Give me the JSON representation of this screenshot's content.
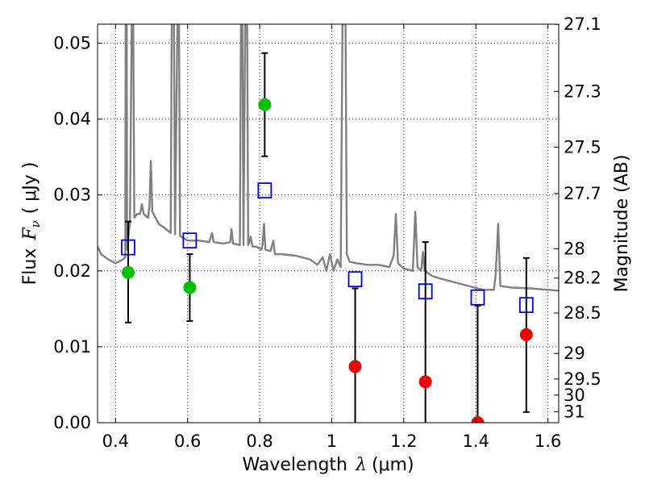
{
  "chart_data": {
    "type": "scatter",
    "xlabel_text": "Wavelength",
    "xlabel_symbol": "λ",
    "xlabel_unit": "(μm)",
    "ylabel_text": "Flux",
    "ylabel_symbol": "F",
    "ylabel_subscript": "ν",
    "ylabel_unit": "( μJy )",
    "y2label": "Magnitude (AB)",
    "xlim": [
      0.35,
      1.63
    ],
    "ylim": [
      0.0,
      0.0525
    ],
    "x_ticks": [
      0.4,
      0.6,
      0.8,
      1.0,
      1.2,
      1.4,
      1.6
    ],
    "x_tick_labels": [
      "0.4",
      "0.6",
      "0.8",
      "1",
      "1.2",
      "1.4",
      "1.6"
    ],
    "y_ticks": [
      0.0,
      0.01,
      0.02,
      0.03,
      0.04,
      0.05
    ],
    "y_tick_labels": [
      "0.00",
      "0.01",
      "0.02",
      "0.03",
      "0.04",
      "0.05"
    ],
    "y2_ticks": [
      27.1,
      27.3,
      27.5,
      27.7,
      28,
      28.2,
      28.5,
      29,
      29.5,
      30,
      31
    ],
    "y2_tick_labels": [
      "27.1",
      "27.3",
      "27.5",
      "27.7",
      "28",
      "28.2",
      "28.5",
      "29",
      "29.5",
      "30",
      "31"
    ],
    "grid": true,
    "colors": {
      "detection": "#00c000",
      "non_detection": "#ee0000",
      "model": "#0000dd",
      "spectrum": "#808080"
    },
    "observed_points": [
      {
        "x": 0.435,
        "y": 0.0198,
        "yerr_low": 0.0132,
        "yerr_high": 0.0265,
        "detected": true
      },
      {
        "x": 0.606,
        "y": 0.0178,
        "yerr_low": 0.0134,
        "yerr_high": 0.0222,
        "detected": true
      },
      {
        "x": 0.814,
        "y": 0.0419,
        "yerr_low": 0.0351,
        "yerr_high": 0.0487,
        "detected": true
      },
      {
        "x": 1.065,
        "y": 0.0074,
        "yerr_low": 0.0,
        "yerr_high": 0.0177,
        "detected": false
      },
      {
        "x": 1.26,
        "y": 0.0054,
        "yerr_low": 0.0,
        "yerr_high": 0.0238,
        "detected": false
      },
      {
        "x": 1.405,
        "y": 0.0,
        "yerr_low": 0.0,
        "yerr_high": 0.0154,
        "detected": false
      },
      {
        "x": 1.54,
        "y": 0.0116,
        "yerr_low": 0.0014,
        "yerr_high": 0.0217,
        "detected": false
      }
    ],
    "model_points": [
      {
        "x": 0.435,
        "y": 0.0231
      },
      {
        "x": 0.606,
        "y": 0.024
      },
      {
        "x": 0.814,
        "y": 0.0306
      },
      {
        "x": 1.065,
        "y": 0.0189
      },
      {
        "x": 1.26,
        "y": 0.0173
      },
      {
        "x": 1.405,
        "y": 0.0165
      },
      {
        "x": 1.54,
        "y": 0.0155
      }
    ],
    "spectrum": [
      [
        0.35,
        0.0232
      ],
      [
        0.36,
        0.0222
      ],
      [
        0.38,
        0.0215
      ],
      [
        0.4,
        0.021
      ],
      [
        0.42,
        0.0215
      ],
      [
        0.427,
        0.0218
      ],
      [
        0.428,
        0.054
      ],
      [
        0.431,
        0.054
      ],
      [
        0.432,
        0.0228
      ],
      [
        0.44,
        0.0265
      ],
      [
        0.445,
        0.054
      ],
      [
        0.449,
        0.054
      ],
      [
        0.452,
        0.027
      ],
      [
        0.46,
        0.0275
      ],
      [
        0.468,
        0.0275
      ],
      [
        0.473,
        0.0288
      ],
      [
        0.478,
        0.0275
      ],
      [
        0.49,
        0.027
      ],
      [
        0.494,
        0.0285
      ],
      [
        0.498,
        0.0345
      ],
      [
        0.502,
        0.0278
      ],
      [
        0.52,
        0.0262
      ],
      [
        0.54,
        0.0255
      ],
      [
        0.553,
        0.025
      ],
      [
        0.556,
        0.054
      ],
      [
        0.562,
        0.054
      ],
      [
        0.565,
        0.0248
      ],
      [
        0.572,
        0.054
      ],
      [
        0.576,
        0.054
      ],
      [
        0.579,
        0.0246
      ],
      [
        0.6,
        0.024
      ],
      [
        0.63,
        0.024
      ],
      [
        0.66,
        0.0238
      ],
      [
        0.668,
        0.025
      ],
      [
        0.672,
        0.0238
      ],
      [
        0.7,
        0.0236
      ],
      [
        0.718,
        0.0238
      ],
      [
        0.722,
        0.0255
      ],
      [
        0.726,
        0.0236
      ],
      [
        0.745,
        0.0234
      ],
      [
        0.748,
        0.054
      ],
      [
        0.752,
        0.054
      ],
      [
        0.755,
        0.0234
      ],
      [
        0.76,
        0.054
      ],
      [
        0.765,
        0.054
      ],
      [
        0.768,
        0.0234
      ],
      [
        0.775,
        0.0245
      ],
      [
        0.78,
        0.0232
      ],
      [
        0.79,
        0.0232
      ],
      [
        0.805,
        0.0228
      ],
      [
        0.808,
        0.0235
      ],
      [
        0.812,
        0.0262
      ],
      [
        0.816,
        0.0228
      ],
      [
        0.83,
        0.0226
      ],
      [
        0.838,
        0.024
      ],
      [
        0.842,
        0.0222
      ],
      [
        0.86,
        0.0222
      ],
      [
        0.9,
        0.022
      ],
      [
        0.94,
        0.0215
      ],
      [
        0.96,
        0.0208
      ],
      [
        0.975,
        0.0218
      ],
      [
        0.985,
        0.02
      ],
      [
        0.995,
        0.0222
      ],
      [
        1.005,
        0.02
      ],
      [
        1.015,
        0.0215
      ],
      [
        1.025,
        0.0205
      ],
      [
        1.03,
        0.054
      ],
      [
        1.038,
        0.054
      ],
      [
        1.042,
        0.0222
      ],
      [
        1.05,
        0.0212
      ],
      [
        1.07,
        0.021
      ],
      [
        1.1,
        0.0208
      ],
      [
        1.13,
        0.0208
      ],
      [
        1.16,
        0.0205
      ],
      [
        1.172,
        0.022
      ],
      [
        1.178,
        0.0275
      ],
      [
        1.184,
        0.021
      ],
      [
        1.2,
        0.0203
      ],
      [
        1.225,
        0.02
      ],
      [
        1.232,
        0.0278
      ],
      [
        1.238,
        0.0205
      ],
      [
        1.248,
        0.02
      ],
      [
        1.253,
        0.0225
      ],
      [
        1.258,
        0.02
      ],
      [
        1.28,
        0.0193
      ],
      [
        1.3,
        0.019
      ],
      [
        1.34,
        0.0185
      ],
      [
        1.38,
        0.018
      ],
      [
        1.42,
        0.0175
      ],
      [
        1.45,
        0.0175
      ],
      [
        1.455,
        0.0195
      ],
      [
        1.462,
        0.0262
      ],
      [
        1.468,
        0.018
      ],
      [
        1.5,
        0.0178
      ],
      [
        1.55,
        0.0177
      ],
      [
        1.6,
        0.0175
      ],
      [
        1.63,
        0.0174
      ]
    ]
  }
}
